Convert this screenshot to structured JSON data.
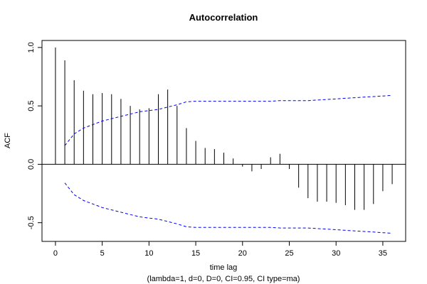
{
  "chart_data": {
    "type": "bar",
    "title": "Autocorrelation",
    "xlabel": "time lag",
    "subtitle": "(lambda=1, d=0, D=0, CI=0.95, CI type=ma)",
    "ylabel": "ACF",
    "xlim": [
      -1.44,
      37.44
    ],
    "ylim": [
      -0.66,
      1.06
    ],
    "x_ticks": [
      0,
      5,
      10,
      15,
      20,
      25,
      30,
      35
    ],
    "y_ticks": [
      -0.5,
      0.0,
      0.5,
      1.0
    ],
    "y_tick_labels": [
      "-0.5",
      "0.0",
      "0.5",
      "1.0"
    ],
    "lags": [
      0,
      1,
      2,
      3,
      4,
      5,
      6,
      7,
      8,
      9,
      10,
      11,
      12,
      13,
      14,
      15,
      16,
      17,
      18,
      19,
      20,
      21,
      22,
      23,
      24,
      25,
      26,
      27,
      28,
      29,
      30,
      31,
      32,
      33,
      34,
      35,
      36
    ],
    "acf": [
      1.0,
      0.89,
      0.72,
      0.63,
      0.6,
      0.61,
      0.6,
      0.56,
      0.5,
      0.47,
      0.48,
      0.6,
      0.64,
      0.5,
      0.31,
      0.2,
      0.14,
      0.13,
      0.1,
      0.05,
      -0.02,
      -0.06,
      -0.04,
      0.06,
      0.09,
      -0.04,
      -0.2,
      -0.29,
      -0.32,
      -0.32,
      -0.33,
      -0.35,
      -0.39,
      -0.39,
      -0.34,
      -0.23,
      -0.17
    ],
    "ci_lags": [
      1,
      2,
      3,
      4,
      5,
      6,
      7,
      8,
      9,
      10,
      11,
      12,
      13,
      14,
      15,
      16,
      17,
      18,
      19,
      20,
      21,
      22,
      23,
      24,
      25,
      26,
      27,
      28,
      29,
      30,
      31,
      32,
      33,
      34,
      35,
      36
    ],
    "ci_upper": [
      0.16,
      0.26,
      0.31,
      0.34,
      0.37,
      0.39,
      0.41,
      0.43,
      0.45,
      0.46,
      0.47,
      0.49,
      0.51,
      0.535,
      0.54,
      0.54,
      0.54,
      0.54,
      0.54,
      0.54,
      0.54,
      0.54,
      0.54,
      0.545,
      0.545,
      0.545,
      0.545,
      0.55,
      0.555,
      0.56,
      0.565,
      0.57,
      0.575,
      0.58,
      0.585,
      0.59
    ],
    "colors": {
      "bars": "#000000",
      "ci": "#0000ee",
      "zero_line": "#000000"
    },
    "grid": false
  }
}
